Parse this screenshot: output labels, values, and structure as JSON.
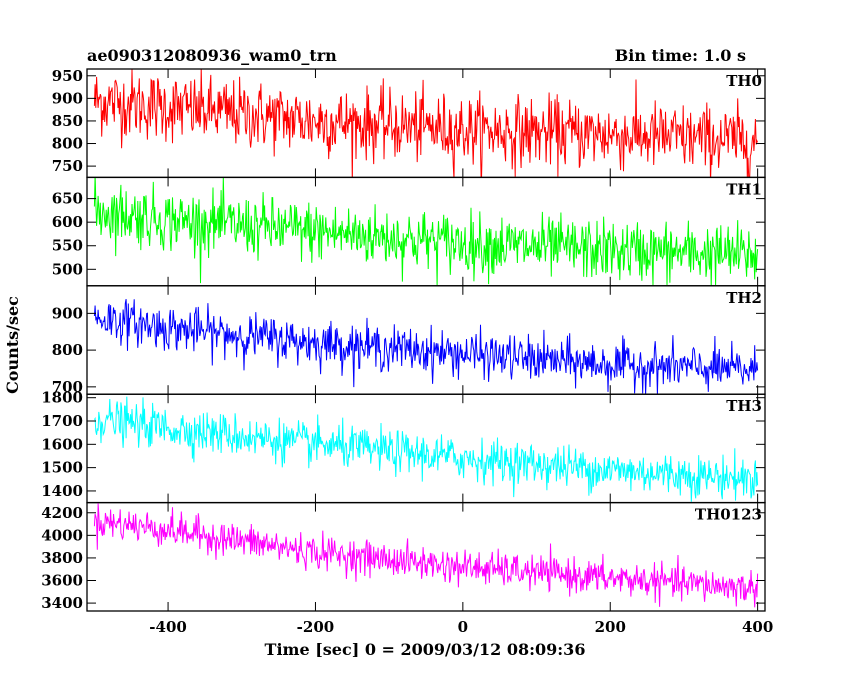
{
  "header": {
    "title": "ae090312080936_wam0_trn",
    "bin_time": "Bin time: 1.0 s"
  },
  "chart_data": {
    "type": "line",
    "title": "ae090312080936_wam0_trn",
    "xlabel": "Time [sec] 0 = 2009/03/12 08:09:36",
    "ylabel": "Counts/sec",
    "xlim": [
      -510,
      410
    ],
    "x_ticks": [
      "-400",
      "-200",
      "0",
      "200",
      "400"
    ],
    "x_step": 1,
    "grid": false,
    "panels": [
      {
        "name": "TH0",
        "color": "#ff0000",
        "ylim": [
          725,
          965
        ],
        "yticks": [
          750,
          800,
          850,
          900,
          950
        ],
        "trend": [
          [
            -500,
            895
          ],
          [
            -400,
            880
          ],
          [
            -200,
            850
          ],
          [
            0,
            830
          ],
          [
            200,
            820
          ],
          [
            400,
            805
          ]
        ],
        "noise_sigma": 38
      },
      {
        "name": "TH1",
        "color": "#00ff00",
        "ylim": [
          465,
          695
        ],
        "yticks": [
          500,
          550,
          600,
          650
        ],
        "trend": [
          [
            -500,
            625
          ],
          [
            -400,
            605
          ],
          [
            -200,
            580
          ],
          [
            0,
            555
          ],
          [
            200,
            540
          ],
          [
            400,
            530
          ]
        ],
        "noise_sigma": 32
      },
      {
        "name": "TH2",
        "color": "#0000ff",
        "ylim": [
          680,
          975
        ],
        "yticks": [
          700,
          800,
          900
        ],
        "trend": [
          [
            -500,
            890
          ],
          [
            -400,
            860
          ],
          [
            -200,
            820
          ],
          [
            0,
            790
          ],
          [
            200,
            760
          ],
          [
            400,
            745
          ]
        ],
        "noise_sigma": 30
      },
      {
        "name": "TH3",
        "color": "#00ffff",
        "ylim": [
          1350,
          1815
        ],
        "yticks": [
          1400,
          1500,
          1600,
          1700,
          1800
        ],
        "trend": [
          [
            -500,
            1710
          ],
          [
            -400,
            1670
          ],
          [
            -200,
            1600
          ],
          [
            0,
            1540
          ],
          [
            200,
            1490
          ],
          [
            400,
            1450
          ]
        ],
        "noise_sigma": 45
      },
      {
        "name": "TH0123",
        "color": "#ff00ff",
        "ylim": [
          3330,
          4290
        ],
        "yticks": [
          3400,
          3600,
          3800,
          4000,
          4200
        ],
        "trend": [
          [
            -500,
            4130
          ],
          [
            -400,
            4050
          ],
          [
            -200,
            3850
          ],
          [
            0,
            3720
          ],
          [
            200,
            3620
          ],
          [
            400,
            3530
          ]
        ],
        "noise_sigma": 75
      }
    ]
  }
}
